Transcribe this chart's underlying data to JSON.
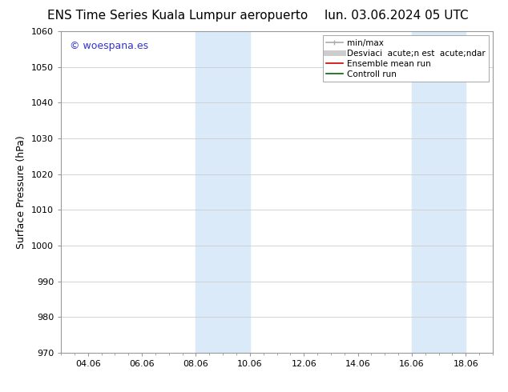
{
  "title_left": "ENS Time Series Kuala Lumpur aeropuerto",
  "title_right": "lun. 03.06.2024 05 UTC",
  "ylabel": "Surface Pressure (hPa)",
  "ylim": [
    970,
    1060
  ],
  "yticks": [
    970,
    980,
    990,
    1000,
    1010,
    1020,
    1030,
    1040,
    1050,
    1060
  ],
  "xtick_labels": [
    "04.06",
    "06.06",
    "08.06",
    "10.06",
    "12.06",
    "14.06",
    "16.06",
    "18.06"
  ],
  "xtick_positions": [
    1,
    3,
    5,
    7,
    9,
    11,
    13,
    15
  ],
  "xlim": [
    0,
    16
  ],
  "shaded_regions": [
    {
      "xmin": 5,
      "xmax": 7
    },
    {
      "xmin": 13,
      "xmax": 15
    }
  ],
  "shaded_color": "#daeaf8",
  "watermark_text": "© woespana.es",
  "watermark_color": "#3333cc",
  "legend_label_minmax": "min/max",
  "legend_label_desv": "Desviaci  acute;n est  acute;ndar",
  "legend_label_ensemble": "Ensemble mean run",
  "legend_label_control": "Controll run",
  "legend_color_minmax": "#aaaaaa",
  "legend_color_desv": "#cccccc",
  "legend_color_ensemble": "#cc0000",
  "legend_color_control": "#006600",
  "background_color": "#ffffff",
  "grid_color": "#cccccc",
  "spine_color": "#999999",
  "title_fontsize": 11,
  "axis_label_fontsize": 9,
  "tick_fontsize": 8,
  "legend_fontsize": 7.5,
  "watermark_fontsize": 9
}
